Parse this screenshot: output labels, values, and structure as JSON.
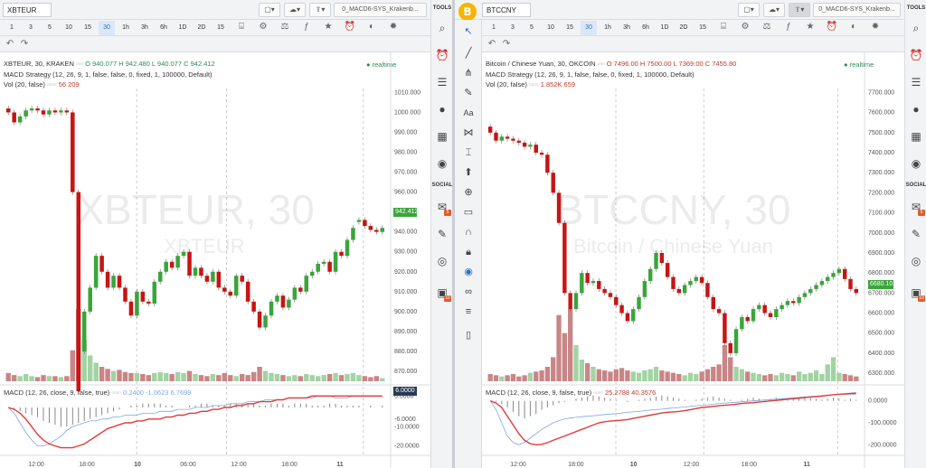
{
  "left": {
    "symbol": "XBTEUR",
    "script_name": "0_MACD6-SYS_Krakenb...",
    "timeframes": [
      "1",
      "3",
      "5",
      "10",
      "15",
      "30",
      "1h",
      "3h",
      "6h",
      "1D",
      "2D",
      "15"
    ],
    "active_timeframe": "30",
    "legend_title": "XBTEUR, 30, KRAKEN",
    "ohlc": "O 940.077 H 942.480 L 940.077 C 942.412",
    "realtime": "realtime",
    "strategy": "MACD Strategy (12, 26, 9, 1, false, false, 0, fixed, 1, 100000, Default)",
    "vol_label": "Vol (20, false)",
    "vol_values": "56 209",
    "macd_label": "MACD (12, 26, close, 9, false, true)",
    "macd_values": "0.2400 -1.0623 6.7699",
    "watermark_main": "XBTEUR, 30",
    "watermark_sub": "XBTEUR",
    "price_tag": "942.412",
    "price_axis": [
      "1010.000",
      "1000.000",
      "990.000",
      "980.000",
      "970.000",
      "960.000",
      "950.000",
      "940.000",
      "930.000",
      "920.000",
      "910.000",
      "900.000",
      "890.000",
      "880.000",
      "870.000"
    ],
    "macd_axis": [
      "6.0000",
      "-6.0000",
      "-10.0000",
      "-20.0000"
    ],
    "macd_tag": "6.0000",
    "time_axis": [
      "12:00",
      "18:00",
      "10",
      "06:00",
      "12:00",
      "18:00",
      "11"
    ]
  },
  "right": {
    "symbol": "BTCCNY",
    "script_name": "0_MACD6-SYS_Krakenb...",
    "timeframes": [
      "1",
      "3",
      "5",
      "10",
      "15",
      "30",
      "1h",
      "3h",
      "6h",
      "1D",
      "2D",
      "15"
    ],
    "active_timeframe": "30",
    "legend_title": "Bitcoin / Chinese Yuan, 30, OKCOIN",
    "ohlc": "O 7496.00 H 7500.00 L 7369.00 C 7455.80",
    "realtime": "realtime",
    "strategy": "MACD Strategy (12, 26, 9, 1, false, false, 0, fixed, 1, 100000, Default)",
    "vol_label": "Vol (20, false)",
    "vol_values": "1.852K 659",
    "macd_label": "MACD (12, 26, close, 9, false, true)",
    "macd_values": "25.2788 40.3576",
    "watermark_main": "BTCCNY, 30",
    "watermark_sub": "Bitcoin / Chinese Yuan",
    "price_tag": "6680.10",
    "price_axis": [
      "7700.000",
      "7600.000",
      "7500.000",
      "7400.000",
      "7300.000",
      "7200.000",
      "7100.000",
      "7000.000",
      "6900.000",
      "6800.000",
      "6700.000",
      "6600.000",
      "6500.000",
      "6400.000",
      "6300.000"
    ],
    "macd_axis": [
      "0.0000",
      "-100.0000",
      "-200.0000"
    ],
    "time_axis": [
      "12:00",
      "18:00",
      "10",
      "12:00",
      "18:00",
      "11"
    ]
  },
  "toolbar_right": {
    "tools_label": "TOOLS",
    "social_label": "SOCIAL",
    "badge_a": "5",
    "badge_b": "10"
  },
  "colors": {
    "up": "#3aa53a",
    "down": "#c81414",
    "vol_up": "#a3d3a3",
    "vol_down": "#c98585",
    "macd_line": "#e03a3a",
    "signal_line": "#7ea7e0"
  },
  "chart_data": [
    {
      "type": "candlestick",
      "series": "XBTEUR, 30, KRAKEN",
      "ylim": [
        865,
        1012
      ],
      "close": [
        1000,
        995,
        998,
        1001,
        1002,
        1001,
        999,
        1001,
        1000,
        1001,
        1000,
        960,
        860,
        900,
        912,
        928,
        920,
        912,
        918,
        912,
        905,
        898,
        910,
        905,
        904,
        915,
        920,
        925,
        922,
        928,
        930,
        918,
        922,
        918,
        915,
        920,
        912,
        910,
        908,
        918,
        915,
        905,
        900,
        892,
        898,
        905,
        908,
        902,
        906,
        912,
        910,
        918,
        920,
        924,
        925,
        920,
        930,
        928,
        936,
        942,
        946,
        943,
        941,
        940,
        942
      ],
      "open": [
        1002,
        1000,
        995,
        998,
        1001,
        1002,
        1001,
        999,
        1001,
        1000,
        1001,
        1000,
        960,
        880,
        900,
        912,
        928,
        920,
        912,
        918,
        912,
        905,
        898,
        910,
        905,
        904,
        915,
        920,
        925,
        922,
        928,
        930,
        918,
        922,
        918,
        915,
        920,
        912,
        910,
        908,
        918,
        915,
        905,
        900,
        892,
        898,
        905,
        908,
        902,
        906,
        912,
        910,
        918,
        920,
        924,
        925,
        920,
        930,
        928,
        936,
        945,
        946,
        943,
        941,
        940
      ],
      "volume": [
        8,
        6,
        5,
        7,
        5,
        4,
        6,
        5,
        5,
        4,
        5,
        30,
        70,
        40,
        25,
        18,
        14,
        12,
        10,
        11,
        9,
        8,
        8,
        7,
        6,
        8,
        9,
        8,
        7,
        9,
        8,
        10,
        7,
        6,
        5,
        7,
        6,
        8,
        6,
        5,
        7,
        6,
        9,
        14,
        10,
        8,
        7,
        6,
        5,
        6,
        5,
        7,
        6,
        5,
        6,
        7,
        8,
        6,
        7,
        8,
        6,
        5,
        4,
        5,
        3
      ],
      "macd_ylim": [
        -24,
        8
      ],
      "macd_hist": [
        0,
        -1,
        -2,
        -3,
        -4,
        -5,
        -7,
        -8,
        -9,
        -10,
        -10,
        -9,
        -8,
        -7,
        -6,
        -5,
        -4,
        -3,
        -2,
        -1,
        0,
        1,
        1,
        2,
        2,
        2,
        2,
        1,
        1,
        0,
        0,
        1,
        1,
        2,
        2,
        1,
        1,
        1,
        2,
        2,
        2,
        2,
        2,
        1,
        1,
        2,
        2,
        2,
        1,
        2,
        2,
        2,
        1,
        1,
        1,
        2,
        2,
        1,
        1,
        1,
        1,
        0,
        1,
        0,
        1
      ],
      "macd_line": [
        0,
        -1,
        -3,
        -6,
        -10,
        -14,
        -17,
        -19,
        -20,
        -21,
        -21,
        -21,
        -20,
        -19,
        -17,
        -15,
        -13,
        -11,
        -10,
        -9,
        -8,
        -8,
        -7,
        -7,
        -6,
        -6,
        -6,
        -5,
        -5,
        -4,
        -4,
        -3,
        -3,
        -2,
        -2,
        -1,
        -1,
        0,
        0,
        1,
        1,
        2,
        2,
        3,
        3,
        3,
        4,
        4,
        5,
        5,
        5,
        5,
        6,
        6,
        6,
        6,
        6,
        6,
        6,
        6,
        6,
        6,
        6,
        6,
        6
      ],
      "signal_line": [
        0,
        -3,
        -8,
        -13,
        -17,
        -20,
        -20,
        -19,
        -17,
        -15,
        -12,
        -10,
        -9,
        -8,
        -7,
        -7,
        -6,
        -6,
        -5,
        -5,
        -4,
        -4,
        -4,
        -3,
        -3,
        -3,
        -2,
        -2,
        -2,
        -1,
        -1,
        -1,
        0,
        0,
        0,
        1,
        1,
        1,
        2,
        2,
        2,
        3,
        3,
        3,
        4,
        4,
        4,
        4,
        5,
        5,
        5,
        5,
        5,
        6,
        6,
        6,
        5,
        5,
        5,
        6,
        6,
        6,
        6,
        6,
        6
      ]
    },
    {
      "type": "candlestick",
      "series": "Bitcoin / Chinese Yuan, 30, OKCOIN",
      "ylim": [
        6260,
        7720
      ],
      "close": [
        7500,
        7460,
        7480,
        7470,
        7460,
        7450,
        7430,
        7440,
        7400,
        7390,
        7300,
        7200,
        7050,
        6700,
        6620,
        6700,
        6800,
        6750,
        6760,
        6720,
        6700,
        6680,
        6640,
        6600,
        6560,
        6620,
        6680,
        6760,
        6820,
        6900,
        6850,
        6780,
        6720,
        6700,
        6740,
        6760,
        6780,
        6750,
        6680,
        6620,
        6600,
        6450,
        6400,
        6520,
        6580,
        6560,
        6620,
        6640,
        6600,
        6580,
        6620,
        6640,
        6660,
        6650,
        6680,
        6700,
        6720,
        6740,
        6760,
        6780,
        6800,
        6820,
        6770,
        6720,
        6700
      ],
      "open": [
        7530,
        7500,
        7460,
        7480,
        7470,
        7460,
        7450,
        7430,
        7440,
        7400,
        7390,
        7300,
        7200,
        7050,
        6700,
        6620,
        6700,
        6800,
        6750,
        6760,
        6720,
        6700,
        6680,
        6640,
        6600,
        6560,
        6620,
        6680,
        6760,
        6820,
        6900,
        6850,
        6780,
        6720,
        6700,
        6740,
        6760,
        6780,
        6750,
        6680,
        6620,
        6600,
        6450,
        6400,
        6520,
        6580,
        6560,
        6620,
        6640,
        6600,
        6580,
        6620,
        6640,
        6660,
        6650,
        6680,
        6700,
        6720,
        6740,
        6760,
        6780,
        6800,
        6820,
        6770,
        6720
      ],
      "volume": [
        6,
        5,
        4,
        5,
        6,
        4,
        5,
        7,
        8,
        9,
        12,
        20,
        55,
        40,
        60,
        30,
        18,
        15,
        12,
        10,
        9,
        8,
        10,
        11,
        9,
        8,
        7,
        9,
        10,
        12,
        9,
        8,
        7,
        6,
        5,
        7,
        6,
        8,
        10,
        12,
        14,
        30,
        20,
        12,
        10,
        8,
        7,
        6,
        5,
        6,
        5,
        7,
        6,
        5,
        8,
        6,
        7,
        9,
        6,
        14,
        20,
        7,
        6,
        5,
        4
      ],
      "macd_ylim": [
        -240,
        40
      ],
      "macd_hist": [
        0,
        -5,
        -15,
        -30,
        -50,
        -70,
        -80,
        -70,
        -60,
        -40,
        -30,
        -20,
        -10,
        -5,
        0,
        10,
        15,
        20,
        25,
        20,
        15,
        10,
        5,
        0,
        -5,
        0,
        5,
        10,
        15,
        20,
        25,
        20,
        15,
        10,
        5,
        0,
        5,
        10,
        15,
        20,
        15,
        10,
        5,
        0,
        5,
        10,
        15,
        10,
        5,
        10,
        15,
        10,
        5,
        10,
        15,
        20,
        15,
        10,
        5,
        10,
        15,
        10,
        5,
        10,
        5
      ],
      "macd_line": [
        0,
        -10,
        -30,
        -70,
        -110,
        -150,
        -180,
        -195,
        -200,
        -198,
        -190,
        -180,
        -170,
        -160,
        -150,
        -140,
        -130,
        -120,
        -110,
        -100,
        -95,
        -92,
        -90,
        -88,
        -85,
        -80,
        -75,
        -70,
        -65,
        -60,
        -55,
        -52,
        -50,
        -48,
        -45,
        -40,
        -35,
        -30,
        -28,
        -25,
        -22,
        -20,
        -18,
        -15,
        -12,
        -10,
        -8,
        -5,
        -3,
        0,
        2,
        5,
        8,
        10,
        12,
        15,
        18,
        20,
        22,
        25,
        28,
        30,
        32,
        34,
        36
      ],
      "signal_line": [
        0,
        -40,
        -100,
        -160,
        -190,
        -200,
        -190,
        -170,
        -150,
        -130,
        -115,
        -100,
        -90,
        -82,
        -78,
        -75,
        -72,
        -70,
        -68,
        -65,
        -62,
        -60,
        -58,
        -55,
        -52,
        -50,
        -48,
        -45,
        -42,
        -40,
        -38,
        -35,
        -32,
        -30,
        -28,
        -25,
        -22,
        -20,
        -18,
        -15,
        -12,
        -10,
        -8,
        -6,
        -4,
        -2,
        0,
        2,
        4,
        6,
        8,
        10,
        12,
        14,
        16,
        18,
        20,
        22,
        24,
        26,
        28,
        30,
        30,
        30,
        30
      ]
    }
  ]
}
